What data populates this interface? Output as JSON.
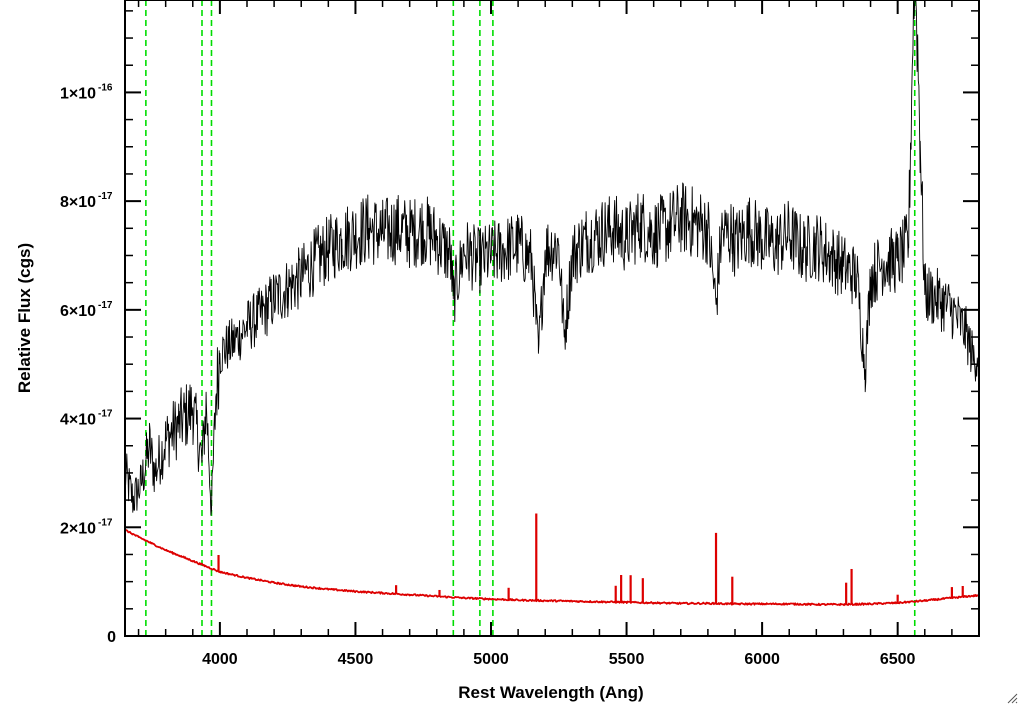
{
  "chart_data": {
    "type": "line",
    "xlabel": "Rest Wavelength (Ang)",
    "ylabel": "Relative Flux (cgs)",
    "xlim": [
      3650,
      6800
    ],
    "ylim": [
      0,
      1.17e-16
    ],
    "x_ticks": [
      {
        "value": 4000,
        "label": "4000"
      },
      {
        "value": 4500,
        "label": "4500"
      },
      {
        "value": 5000,
        "label": "5000"
      },
      {
        "value": 5500,
        "label": "5500"
      },
      {
        "value": 6000,
        "label": "6000"
      },
      {
        "value": 6500,
        "label": "6500"
      }
    ],
    "y_ticks": [
      {
        "value": 0,
        "mant": "0",
        "exp": ""
      },
      {
        "value": 2e-17,
        "mant": "2×10",
        "exp": "-17"
      },
      {
        "value": 4e-17,
        "mant": "4×10",
        "exp": "-17"
      },
      {
        "value": 6e-17,
        "mant": "6×10",
        "exp": "-17"
      },
      {
        "value": 8e-17,
        "mant": "8×10",
        "exp": "-17"
      },
      {
        "value": 1e-16,
        "mant": "1×10",
        "exp": "-16"
      }
    ],
    "vertical_lines": {
      "color": "#00dd00",
      "style": "dashed",
      "x": [
        3727,
        3934,
        3969,
        4861,
        4959,
        5007,
        6563
      ]
    },
    "series": [
      {
        "color": "#000000",
        "x": [
          3650,
          3680,
          3710,
          3740,
          3760,
          3800,
          3850,
          3900,
          3934,
          3950,
          3969,
          3985,
          4000,
          4050,
          4100,
          4150,
          4200,
          4250,
          4300,
          4350,
          4400,
          4450,
          4500,
          4550,
          4600,
          4650,
          4700,
          4750,
          4800,
          4850,
          4861,
          4900,
          4950,
          5000,
          5050,
          5100,
          5150,
          5175,
          5200,
          5250,
          5270,
          5300,
          5350,
          5400,
          5450,
          5500,
          5550,
          5600,
          5650,
          5700,
          5750,
          5800,
          5830,
          5850,
          5890,
          5900,
          5950,
          6000,
          6050,
          6100,
          6150,
          6200,
          6250,
          6300,
          6350,
          6380,
          6400,
          6450,
          6500,
          6540,
          6563,
          6583,
          6600,
          6650,
          6700,
          6750,
          6780,
          6800
        ],
        "y": [
          3e-17,
          2.5e-17,
          2.8e-17,
          3.5e-17,
          3e-17,
          3.6e-17,
          3.9e-17,
          4.2e-17,
          3.2e-17,
          4.3e-17,
          2.3e-17,
          4.4e-17,
          5.2e-17,
          5.4e-17,
          5.7e-17,
          5.9e-17,
          6.2e-17,
          6.4e-17,
          6.6e-17,
          6.9e-17,
          7.1e-17,
          7.3e-17,
          7.4e-17,
          7.5e-17,
          7.4e-17,
          7.5e-17,
          7.4e-17,
          7.5e-17,
          7.3e-17,
          7e-17,
          6.2e-17,
          7.1e-17,
          6.9e-17,
          7e-17,
          7.1e-17,
          7.2e-17,
          6.9e-17,
          5.2e-17,
          7.1e-17,
          7.2e-17,
          5.5e-17,
          7e-17,
          7.3e-17,
          7.4e-17,
          7.5e-17,
          7.3e-17,
          7.6e-17,
          7.4e-17,
          7.5e-17,
          7.7e-17,
          7.6e-17,
          7.5e-17,
          6.1e-17,
          7.4e-17,
          7.4e-17,
          7.2e-17,
          7.5e-17,
          7.3e-17,
          7.2e-17,
          7.4e-17,
          7.1e-17,
          7.2e-17,
          7e-17,
          6.8e-17,
          6.6e-17,
          4.9e-17,
          6.6e-17,
          6.9e-17,
          6.9e-17,
          7.2e-17,
          1.28e-16,
          9.1e-17,
          6.3e-17,
          6.2e-17,
          6e-17,
          5.6e-17,
          5.1e-17,
          5.2e-17
        ]
      },
      {
        "color": "#dd0000",
        "x": [
          3650,
          3700,
          3750,
          3800,
          3850,
          3900,
          3950,
          4000,
          4100,
          4200,
          4300,
          4400,
          4500,
          4600,
          4700,
          4800,
          4900,
          5000,
          5100,
          5200,
          5300,
          5400,
          5500,
          5600,
          5700,
          5800,
          5900,
          6000,
          6100,
          6200,
          6300,
          6400,
          6500,
          6600,
          6700,
          6800
        ],
        "y": [
          1.95e-17,
          1.82e-17,
          1.7e-17,
          1.58e-17,
          1.48e-17,
          1.38e-17,
          1.28e-17,
          1.18e-17,
          1.07e-17,
          9.8e-18,
          9.1e-18,
          8.6e-18,
          8.2e-18,
          7.9e-18,
          7.6e-18,
          7.3e-18,
          7e-18,
          6.8e-18,
          6.6e-18,
          6.5e-18,
          6.4e-18,
          6.3e-18,
          6.2e-18,
          6.1e-18,
          6e-18,
          6e-18,
          5.9e-18,
          5.9e-18,
          5.9e-18,
          5.8e-18,
          5.8e-18,
          5.9e-18,
          6.1e-18,
          6.5e-18,
          7e-18,
          7.5e-18
        ]
      }
    ],
    "red_lines": [
      {
        "x": 3995,
        "h": 3e-18
      },
      {
        "x": 4650,
        "h": 1.6e-18
      },
      {
        "x": 4810,
        "h": 1.2e-18
      },
      {
        "x": 5065,
        "h": 2.2e-18
      },
      {
        "x": 5167,
        "h": 1.6e-17
      },
      {
        "x": 5460,
        "h": 3e-18
      },
      {
        "x": 5480,
        "h": 5e-18
      },
      {
        "x": 5515,
        "h": 5e-18
      },
      {
        "x": 5560,
        "h": 4.5e-18
      },
      {
        "x": 5830,
        "h": 1.3e-17
      },
      {
        "x": 5890,
        "h": 5e-18
      },
      {
        "x": 6310,
        "h": 4e-18
      },
      {
        "x": 6330,
        "h": 6.5e-18
      },
      {
        "x": 6500,
        "h": 1.5e-18
      },
      {
        "x": 6700,
        "h": 2e-18
      },
      {
        "x": 6740,
        "h": 2e-18
      }
    ]
  }
}
